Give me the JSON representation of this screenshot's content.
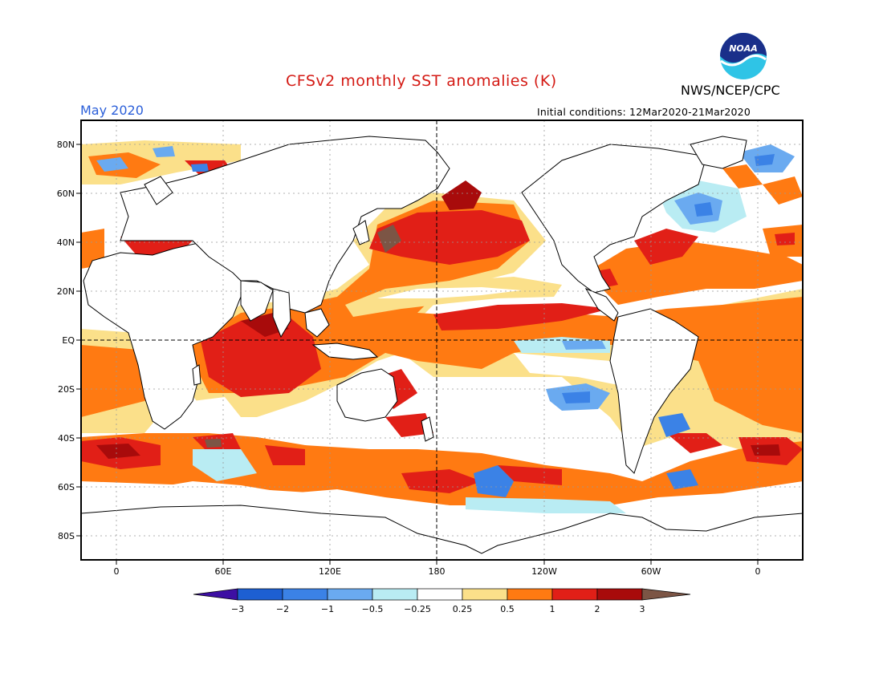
{
  "header": {
    "title": "CFSv2 monthly SST anomalies (K)",
    "month": "May 2020",
    "agency": "NWS/NCEP/CPC",
    "initial_conditions": "Initial conditions: 12Mar2020-21Mar2020",
    "logo_text": "NOAA"
  },
  "map": {
    "lat_labels": [
      "80N",
      "60N",
      "40N",
      "20N",
      "EQ",
      "20S",
      "40S",
      "60S",
      "80S"
    ],
    "lon_labels": [
      "0",
      "60E",
      "120E",
      "180",
      "120W",
      "60W",
      "0"
    ],
    "dashed_reference_lines": [
      "EQ",
      "180"
    ]
  },
  "colorbar": {
    "tick_labels": [
      "-3",
      "-2",
      "-1",
      "-0.5",
      "-0.25",
      "0.25",
      "0.5",
      "1",
      "2",
      "3"
    ],
    "colors": [
      "#3d0fa3",
      "#1d5fd2",
      "#3b82e6",
      "#6aaaf0",
      "#b9ecf3",
      "#ffffff",
      "#fbe08a",
      "#ff7a12",
      "#e11f17",
      "#a80b0b",
      "#7c5545"
    ]
  },
  "palette": {
    "land": "#ffffff",
    "title_color": "#d41a14",
    "month_color": "#2b5fd9"
  }
}
